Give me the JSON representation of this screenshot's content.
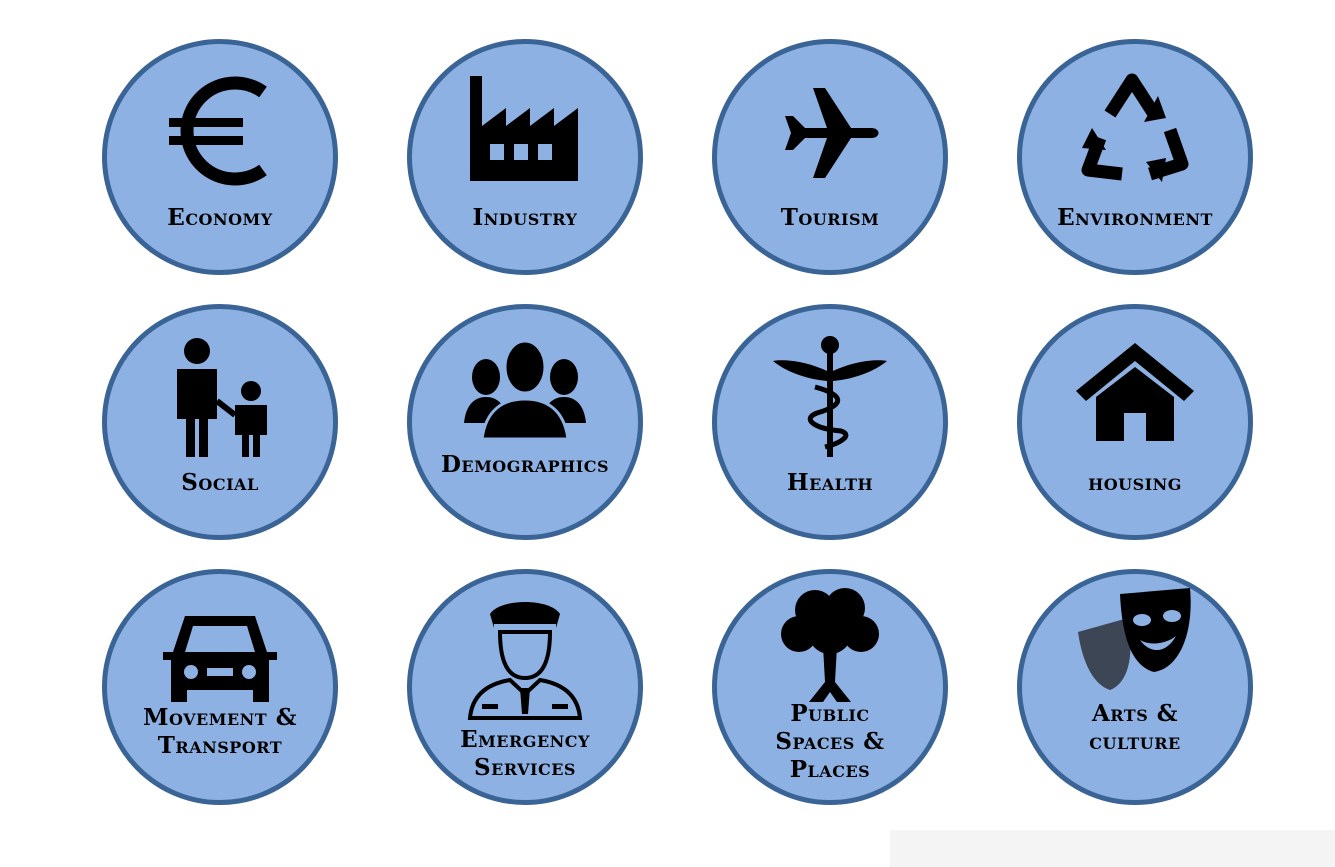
{
  "tiles": [
    {
      "id": "economy",
      "lines": [
        "Economy"
      ],
      "icon": "euro-icon"
    },
    {
      "id": "industry",
      "lines": [
        "Industry"
      ],
      "icon": "factory-icon"
    },
    {
      "id": "tourism",
      "lines": [
        "Tourism"
      ],
      "icon": "airplane-icon"
    },
    {
      "id": "environment",
      "lines": [
        "Environment"
      ],
      "icon": "recycle-icon"
    },
    {
      "id": "social",
      "lines": [
        "Social"
      ],
      "icon": "parent-child-icon"
    },
    {
      "id": "demographics",
      "lines": [
        "Demographics"
      ],
      "icon": "people-group-icon"
    },
    {
      "id": "health",
      "lines": [
        "Health"
      ],
      "icon": "caduceus-icon"
    },
    {
      "id": "housing",
      "lines": [
        "housing"
      ],
      "icon": "house-icon"
    },
    {
      "id": "movement-transport",
      "lines": [
        "Movement &",
        "Transport"
      ],
      "icon": "car-icon"
    },
    {
      "id": "emergency-services",
      "lines": [
        "Emergency",
        "Services"
      ],
      "icon": "police-officer-icon"
    },
    {
      "id": "public-spaces",
      "lines": [
        "Public",
        "Spaces &",
        "Places"
      ],
      "icon": "tree-icon"
    },
    {
      "id": "arts-culture",
      "lines": [
        "Arts &",
        "culture"
      ],
      "icon": "theater-masks-icon"
    }
  ],
  "colors": {
    "tile_fill": "#8db1e2",
    "tile_border": "#3b6496",
    "icon": "#000000"
  }
}
